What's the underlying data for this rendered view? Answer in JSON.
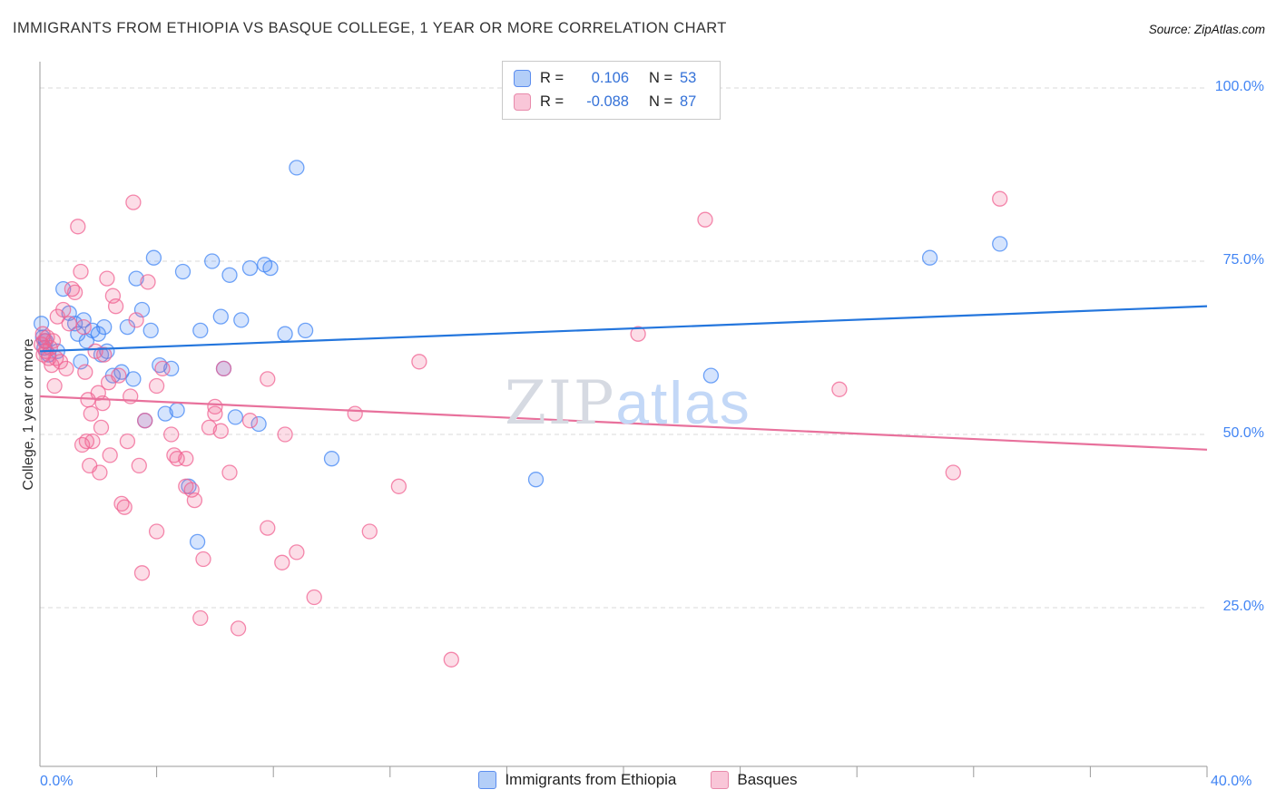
{
  "header": {
    "title": "IMMIGRANTS FROM ETHIOPIA VS BASQUE COLLEGE, 1 YEAR OR MORE CORRELATION CHART",
    "source": "Source: ZipAtlas.com"
  },
  "legend_box": {
    "series": [
      {
        "r_label": "R =",
        "r": "0.106",
        "n_label": "N =",
        "n": "53"
      },
      {
        "r_label": "R =",
        "r": "-0.088",
        "n_label": "N =",
        "n": "87"
      }
    ]
  },
  "watermark": {
    "zip": "ZIP",
    "atlas": "atlas"
  },
  "axes": {
    "y_label": "College, 1 year or more",
    "y_ticks": [
      "100.0%",
      "75.0%",
      "50.0%",
      "25.0%"
    ],
    "x_min_label": "0.0%",
    "x_max_label": "40.0%"
  },
  "bottom_legend": [
    {
      "label": "Immigrants from Ethiopia"
    },
    {
      "label": "Basques"
    }
  ],
  "colors": {
    "blue_fill": "#aecbfa",
    "blue_stroke": "#4285f4",
    "blue_trend": "#2476dd",
    "pink_fill": "#f9c6d8",
    "pink_stroke": "#f06292",
    "pink_trend": "#e8719c",
    "grid": "#d9d9d9",
    "axis": "#9a9a9a",
    "tick_label": "#4285f4"
  },
  "chart_data": {
    "type": "scatter",
    "title": "IMMIGRANTS FROM ETHIOPIA VS BASQUE COLLEGE, 1 YEAR OR MORE CORRELATION CHART",
    "xlabel": "Immigrants from Ethiopia (%)",
    "ylabel": "College, 1 year or more",
    "xlim": [
      0,
      40
    ],
    "ylim": [
      0,
      100
    ],
    "y_gridlines": [
      100,
      75,
      50,
      25
    ],
    "x_ticks": [
      4,
      8,
      12,
      16,
      20,
      24,
      28,
      32,
      36,
      40
    ],
    "grid": true,
    "legend_position": "top-center",
    "series": [
      {
        "id": "ethiopia",
        "name": "Immigrants from Ethiopia",
        "R": 0.106,
        "N": 53,
        "fill": "#4285f4",
        "stroke": "#4285f4",
        "points": [
          [
            0.05,
            66
          ],
          [
            0.1,
            64
          ],
          [
            0.15,
            62.5
          ],
          [
            0.2,
            63.5
          ],
          [
            0.3,
            61.5
          ],
          [
            0.6,
            62
          ],
          [
            0.8,
            71
          ],
          [
            1.0,
            67.5
          ],
          [
            1.2,
            66
          ],
          [
            1.3,
            64.5
          ],
          [
            1.4,
            60.5
          ],
          [
            1.5,
            66.5
          ],
          [
            1.6,
            63.5
          ],
          [
            1.8,
            65
          ],
          [
            2.0,
            64.5
          ],
          [
            2.1,
            61.5
          ],
          [
            2.2,
            65.5
          ],
          [
            2.3,
            62
          ],
          [
            2.5,
            58.5
          ],
          [
            2.8,
            59
          ],
          [
            3.0,
            65.5
          ],
          [
            3.2,
            58
          ],
          [
            3.3,
            72.5
          ],
          [
            3.5,
            68
          ],
          [
            3.6,
            52
          ],
          [
            3.8,
            65
          ],
          [
            3.9,
            75.5
          ],
          [
            4.1,
            60
          ],
          [
            4.3,
            53
          ],
          [
            4.5,
            59.5
          ],
          [
            4.7,
            53.5
          ],
          [
            4.9,
            73.5
          ],
          [
            5.1,
            42.5
          ],
          [
            5.4,
            34.5
          ],
          [
            5.5,
            65
          ],
          [
            5.9,
            75
          ],
          [
            6.2,
            67
          ],
          [
            6.3,
            59.5
          ],
          [
            6.5,
            73
          ],
          [
            6.7,
            52.5
          ],
          [
            6.9,
            66.5
          ],
          [
            7.2,
            74
          ],
          [
            7.5,
            51.5
          ],
          [
            7.7,
            74.5
          ],
          [
            7.9,
            74
          ],
          [
            8.4,
            64.5
          ],
          [
            8.8,
            88.5
          ],
          [
            9.1,
            65
          ],
          [
            10.0,
            46.5
          ],
          [
            17.0,
            43.5
          ],
          [
            23.0,
            58.5
          ],
          [
            30.5,
            75.5
          ],
          [
            32.9,
            77.5
          ]
        ]
      },
      {
        "id": "basques",
        "name": "Basques",
        "R": -0.088,
        "N": 87,
        "fill": "#f06292",
        "stroke": "#f06292",
        "points": [
          [
            0.05,
            63
          ],
          [
            0.1,
            64.5
          ],
          [
            0.12,
            61.5
          ],
          [
            0.15,
            63.5
          ],
          [
            0.2,
            62
          ],
          [
            0.25,
            64
          ],
          [
            0.3,
            61
          ],
          [
            0.35,
            62.5
          ],
          [
            0.4,
            60
          ],
          [
            0.45,
            63.5
          ],
          [
            0.5,
            57
          ],
          [
            0.55,
            61
          ],
          [
            0.6,
            67
          ],
          [
            0.7,
            60.5
          ],
          [
            0.8,
            68
          ],
          [
            0.9,
            59.5
          ],
          [
            1.0,
            66
          ],
          [
            1.1,
            71
          ],
          [
            1.2,
            70.5
          ],
          [
            1.3,
            80
          ],
          [
            1.4,
            73.5
          ],
          [
            1.45,
            48.5
          ],
          [
            1.5,
            65.5
          ],
          [
            1.55,
            59
          ],
          [
            1.6,
            49
          ],
          [
            1.65,
            55
          ],
          [
            1.7,
            45.5
          ],
          [
            1.75,
            53
          ],
          [
            1.8,
            49
          ],
          [
            1.9,
            62
          ],
          [
            2.0,
            56
          ],
          [
            2.05,
            44.5
          ],
          [
            2.1,
            51
          ],
          [
            2.15,
            54.5
          ],
          [
            2.2,
            61.5
          ],
          [
            2.3,
            72.5
          ],
          [
            2.35,
            57.5
          ],
          [
            2.4,
            47
          ],
          [
            2.5,
            70
          ],
          [
            2.6,
            68.5
          ],
          [
            2.7,
            58.5
          ],
          [
            2.8,
            40
          ],
          [
            2.9,
            39.5
          ],
          [
            3.0,
            49
          ],
          [
            3.1,
            55.5
          ],
          [
            3.2,
            83.5
          ],
          [
            3.3,
            66.5
          ],
          [
            3.4,
            45.5
          ],
          [
            3.5,
            30
          ],
          [
            3.6,
            52
          ],
          [
            3.7,
            72
          ],
          [
            4.0,
            57
          ],
          [
            4.0,
            36
          ],
          [
            4.2,
            59.5
          ],
          [
            4.5,
            50
          ],
          [
            4.6,
            47
          ],
          [
            4.7,
            46.5
          ],
          [
            5.0,
            46.5
          ],
          [
            5.0,
            42.5
          ],
          [
            5.2,
            42
          ],
          [
            5.3,
            40.5
          ],
          [
            5.5,
            23.5
          ],
          [
            5.6,
            32
          ],
          [
            5.8,
            51
          ],
          [
            6.0,
            54
          ],
          [
            6.0,
            53
          ],
          [
            6.2,
            50.5
          ],
          [
            6.3,
            59.5
          ],
          [
            6.5,
            44.5
          ],
          [
            6.8,
            22
          ],
          [
            7.2,
            52
          ],
          [
            7.8,
            36.5
          ],
          [
            7.8,
            58
          ],
          [
            8.3,
            31.5
          ],
          [
            8.4,
            50
          ],
          [
            8.8,
            33
          ],
          [
            9.4,
            26.5
          ],
          [
            10.8,
            53
          ],
          [
            11.3,
            36
          ],
          [
            12.3,
            42.5
          ],
          [
            13.0,
            60.5
          ],
          [
            14.1,
            17.5
          ],
          [
            20.5,
            64.5
          ],
          [
            22.8,
            81
          ],
          [
            27.4,
            56.5
          ],
          [
            31.3,
            44.5
          ],
          [
            32.9,
            84
          ]
        ]
      }
    ],
    "trend_lines": [
      {
        "series": "Immigrants from Ethiopia",
        "color": "#2476dd",
        "x1": 0,
        "y1": 62.0,
        "x2": 40,
        "y2": 68.5
      },
      {
        "series": "Basques",
        "color": "#e8719c",
        "x1": 0,
        "y1": 55.5,
        "x2": 40,
        "y2": 47.8
      }
    ]
  }
}
